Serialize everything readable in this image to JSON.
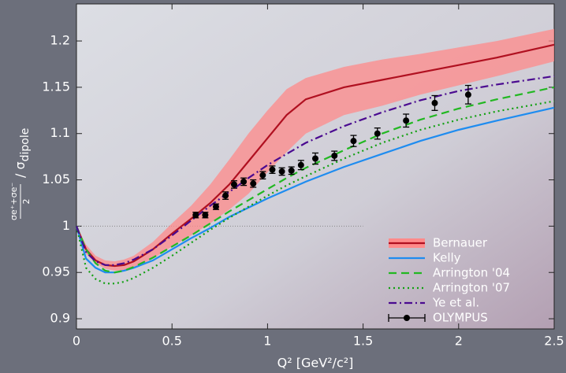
{
  "chart_data": {
    "type": "line",
    "xlabel": "Q² [GeV²/c²]",
    "ylabel": {
      "numerator": "σe⁺+σe⁻",
      "denominator": "2",
      "rest": "/ σ",
      "sub": "dipole"
    },
    "xlim": [
      0,
      2.5
    ],
    "ylim": [
      0.889,
      1.24
    ],
    "xticks": [
      0,
      0.5,
      1,
      1.5,
      2,
      2.5
    ],
    "yticks": [
      0.9,
      0.95,
      1,
      1.05,
      1.1,
      1.15,
      1.2
    ],
    "reference_line": 1,
    "legend": "lower right",
    "x": [
      0,
      0.05,
      0.1,
      0.15,
      0.2,
      0.25,
      0.3,
      0.4,
      0.5,
      0.6,
      0.7,
      0.8,
      0.9,
      1.0,
      1.1,
      1.2,
      1.4,
      1.6,
      1.8,
      2.0,
      2.2,
      2.5
    ],
    "series": [
      {
        "name": "Bernauer",
        "color": "#b01020",
        "style": "solid",
        "band_color": "#ff8a8a",
        "values": [
          1.0,
          0.975,
          0.963,
          0.958,
          0.957,
          0.958,
          0.962,
          0.975,
          0.992,
          1.008,
          1.025,
          1.045,
          1.07,
          1.095,
          1.12,
          1.137,
          1.15,
          1.158,
          1.166,
          1.174,
          1.182,
          1.196
        ],
        "band_upper": [
          1.0,
          0.98,
          0.968,
          0.963,
          0.962,
          0.964,
          0.968,
          0.983,
          1.003,
          1.022,
          1.045,
          1.072,
          1.1,
          1.125,
          1.148,
          1.16,
          1.172,
          1.18,
          1.186,
          1.193,
          1.2,
          1.213
        ],
        "band_lower": [
          1.0,
          0.97,
          0.96,
          0.954,
          0.952,
          0.952,
          0.955,
          0.965,
          0.978,
          0.99,
          1.003,
          1.018,
          1.035,
          1.058,
          1.08,
          1.1,
          1.12,
          1.13,
          1.142,
          1.152,
          1.162,
          1.178
        ]
      },
      {
        "name": "Kelly",
        "color": "#1e8cf0",
        "style": "solid",
        "values": [
          1.0,
          0.965,
          0.955,
          0.95,
          0.95,
          0.952,
          0.955,
          0.963,
          0.975,
          0.987,
          0.998,
          1.01,
          1.02,
          1.03,
          1.039,
          1.048,
          1.064,
          1.078,
          1.092,
          1.104,
          1.114,
          1.128
        ]
      },
      {
        "name": "Arrington '04",
        "color": "#22b822",
        "style": "dashed",
        "values": [
          1.0,
          0.975,
          0.96,
          0.952,
          0.95,
          0.952,
          0.956,
          0.966,
          0.978,
          0.99,
          1.003,
          1.016,
          1.028,
          1.04,
          1.052,
          1.063,
          1.082,
          1.1,
          1.115,
          1.127,
          1.137,
          1.15
        ]
      },
      {
        "name": "Arrington '07",
        "color": "#11a011",
        "style": "dotted",
        "values": [
          1.0,
          0.955,
          0.943,
          0.938,
          0.938,
          0.94,
          0.944,
          0.955,
          0.968,
          0.982,
          0.996,
          1.009,
          1.021,
          1.033,
          1.044,
          1.054,
          1.073,
          1.09,
          1.104,
          1.115,
          1.124,
          1.135
        ]
      },
      {
        "name": "Ye et al.",
        "color": "#4a0a90",
        "style": "dashdot",
        "values": [
          1.0,
          0.972,
          0.962,
          0.958,
          0.958,
          0.96,
          0.964,
          0.975,
          0.99,
          1.006,
          1.022,
          1.037,
          1.052,
          1.066,
          1.078,
          1.09,
          1.108,
          1.123,
          1.136,
          1.146,
          1.153,
          1.162
        ]
      }
    ],
    "points": {
      "name": "OLYMPUS",
      "color": "#000000",
      "x": [
        0.624,
        0.674,
        0.73,
        0.78,
        0.825,
        0.875,
        0.925,
        0.975,
        1.025,
        1.075,
        1.125,
        1.175,
        1.25,
        1.35,
        1.45,
        1.575,
        1.725,
        1.875,
        2.05
      ],
      "y": [
        1.012,
        1.012,
        1.021,
        1.033,
        1.045,
        1.048,
        1.046,
        1.055,
        1.061,
        1.059,
        1.06,
        1.066,
        1.073,
        1.076,
        1.092,
        1.1,
        1.114,
        1.133,
        1.142
      ],
      "err": [
        0.003,
        0.003,
        0.003,
        0.004,
        0.004,
        0.004,
        0.004,
        0.004,
        0.004,
        0.004,
        0.004,
        0.005,
        0.006,
        0.005,
        0.006,
        0.006,
        0.007,
        0.008,
        0.01
      ]
    }
  }
}
